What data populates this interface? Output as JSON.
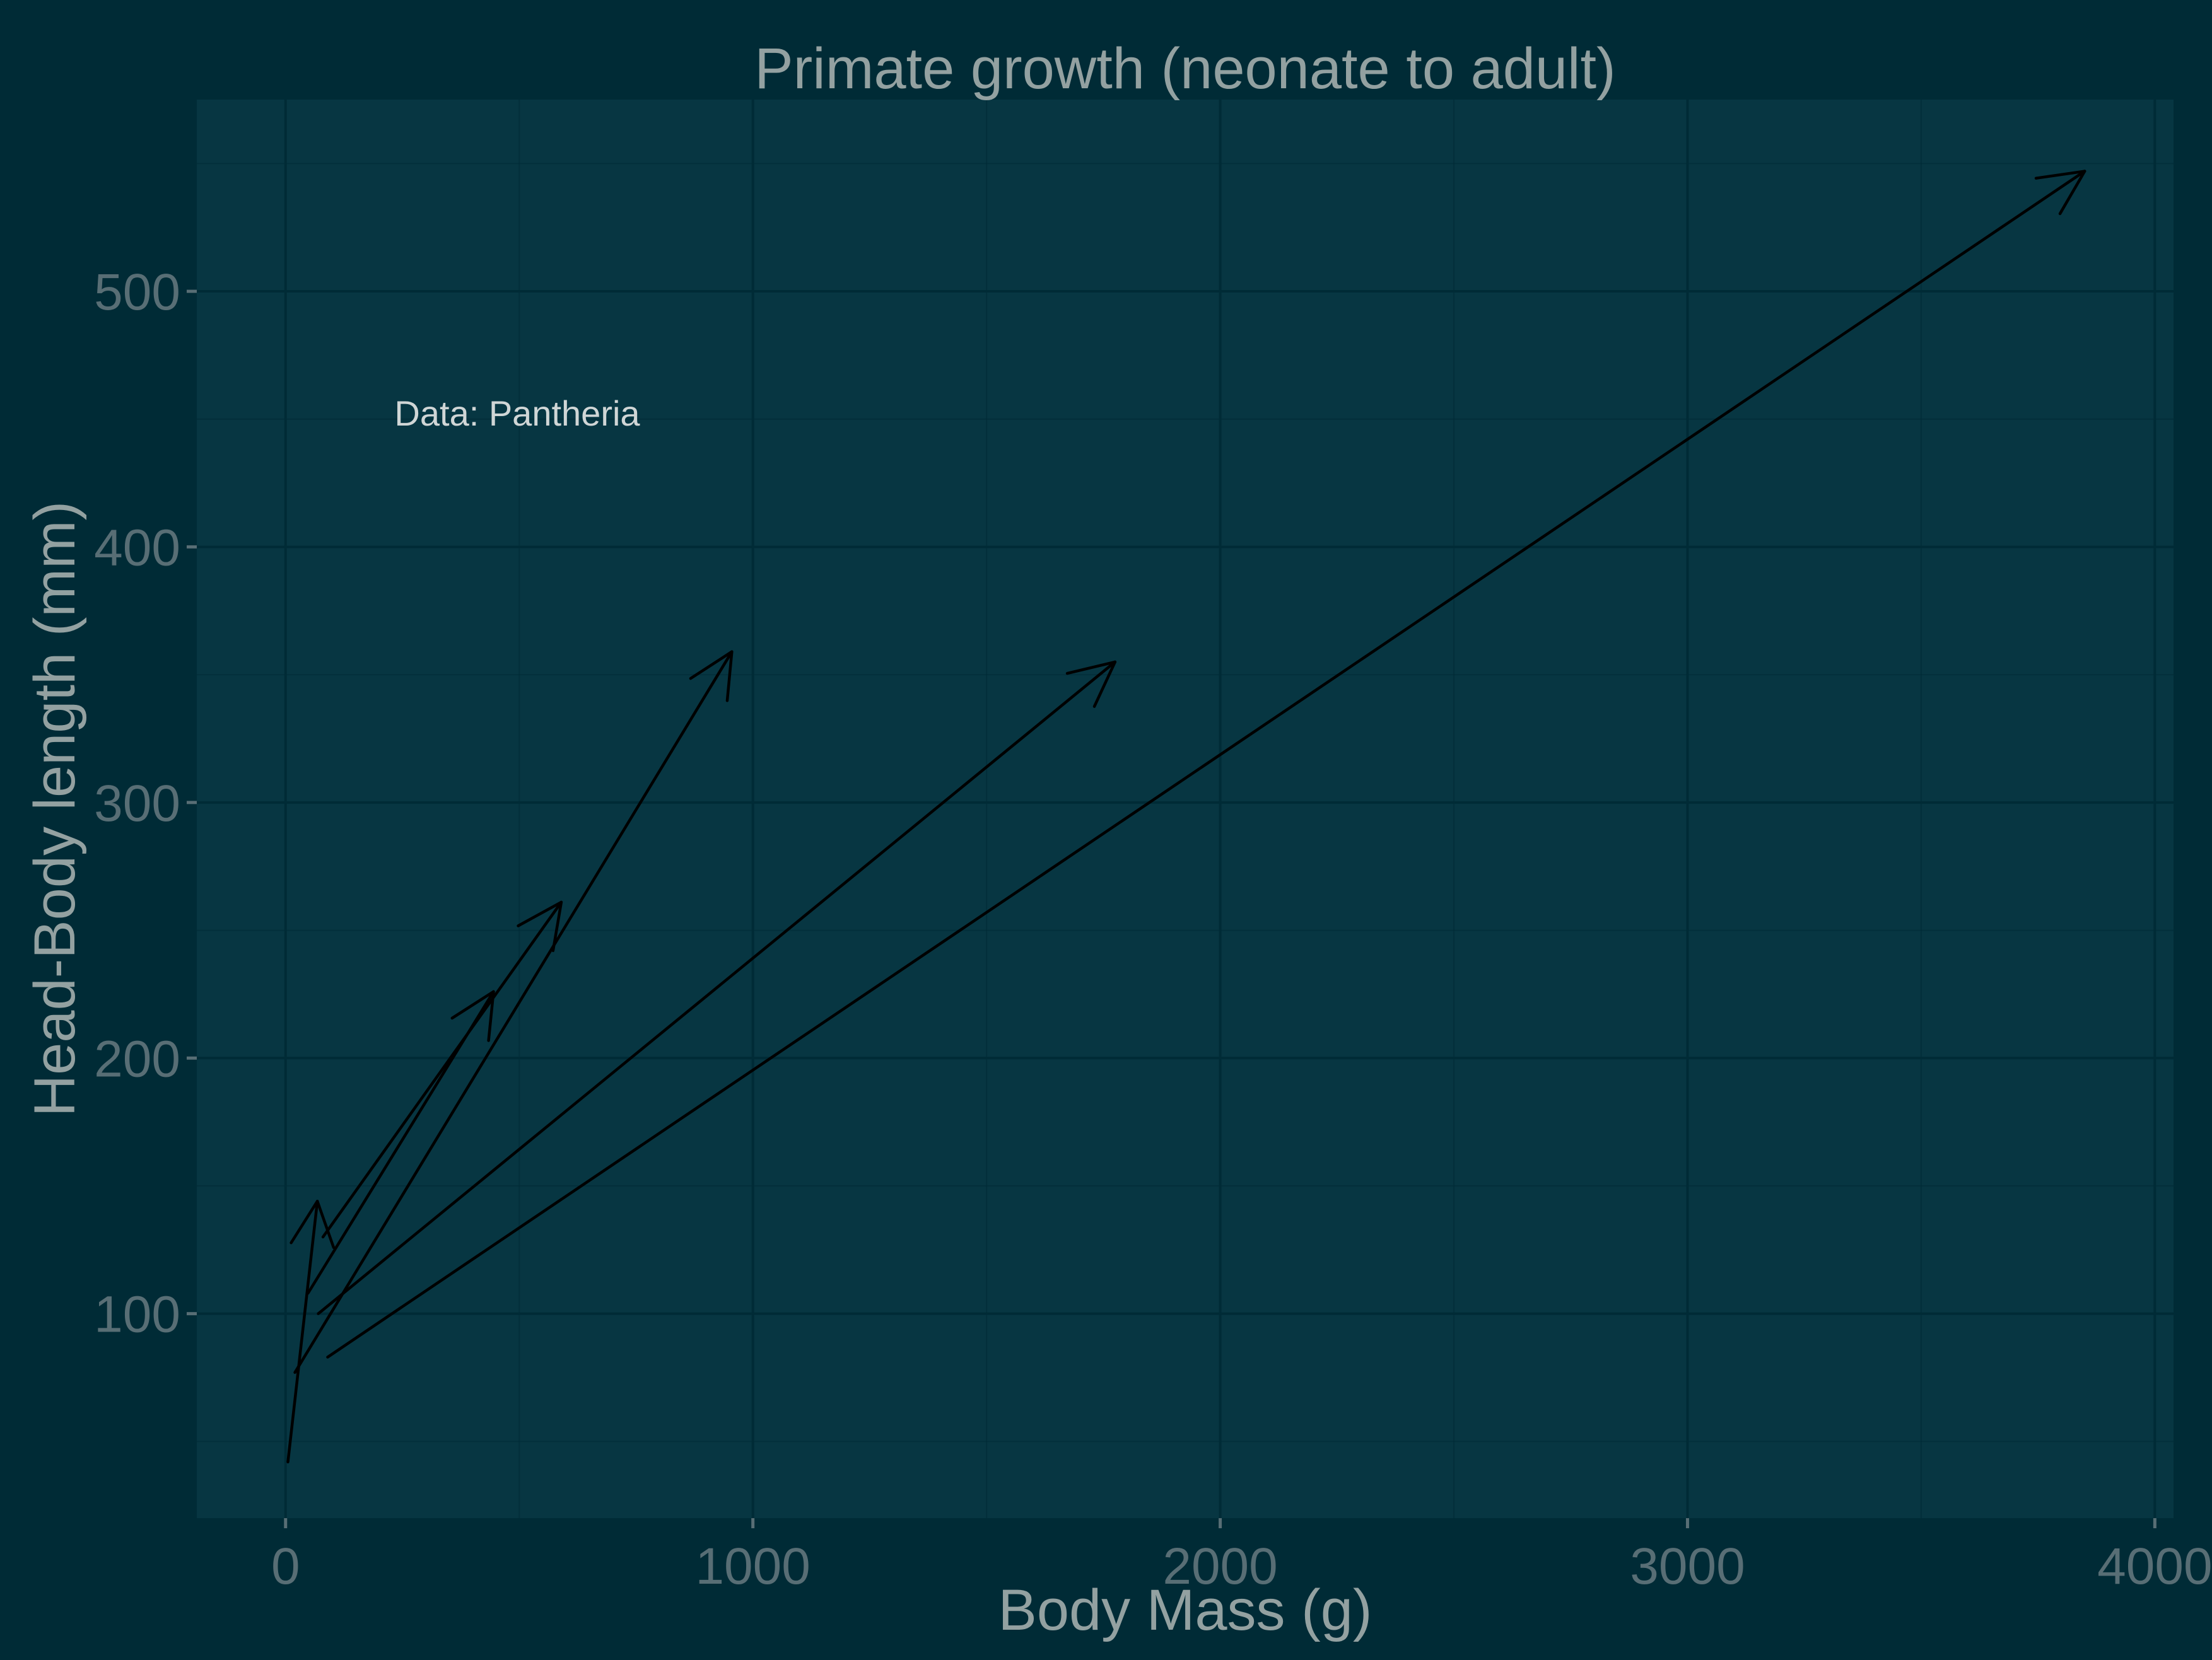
{
  "colors": {
    "background": "#002b36",
    "panel": "#073642",
    "grid": "#002b36",
    "title_text": "#93a1a1",
    "tick_text": "#586e75",
    "annotation_text": "#d0d6d6",
    "arrow": "#000000"
  },
  "chart_data": {
    "type": "line",
    "title": "Primate growth (neonate to adult)",
    "xlabel": "Body Mass (g)",
    "ylabel": "Head-Body length (mm)",
    "annotation": "Data: Pantheria",
    "xlim": [
      -190,
      4040
    ],
    "ylim": [
      20,
      575
    ],
    "x_ticks": [
      0,
      1000,
      2000,
      3000,
      4000
    ],
    "x_tick_labels": [
      "0",
      "1000",
      "2000",
      "3000",
      "4000"
    ],
    "x_minor_ticks": [
      500,
      1500,
      2500,
      3500
    ],
    "y_ticks": [
      100,
      200,
      300,
      400,
      500
    ],
    "y_tick_labels": [
      "100",
      "200",
      "300",
      "400",
      "500"
    ],
    "y_minor_ticks": [
      50,
      150,
      250,
      350,
      450,
      550
    ],
    "grid": true,
    "legend": "none",
    "series": [
      {
        "x_start": 5,
        "y_start": 42,
        "x_end": 68,
        "y_end": 144
      },
      {
        "x_start": 48,
        "y_start": 108,
        "x_end": 445,
        "y_end": 226
      },
      {
        "x_start": 80,
        "y_start": 130,
        "x_end": 590,
        "y_end": 261
      },
      {
        "x_start": 20,
        "y_start": 77,
        "x_end": 955,
        "y_end": 359
      },
      {
        "x_start": 70,
        "y_start": 100,
        "x_end": 1775,
        "y_end": 355
      },
      {
        "x_start": 90,
        "y_start": 83,
        "x_end": 3850,
        "y_end": 547
      }
    ]
  }
}
